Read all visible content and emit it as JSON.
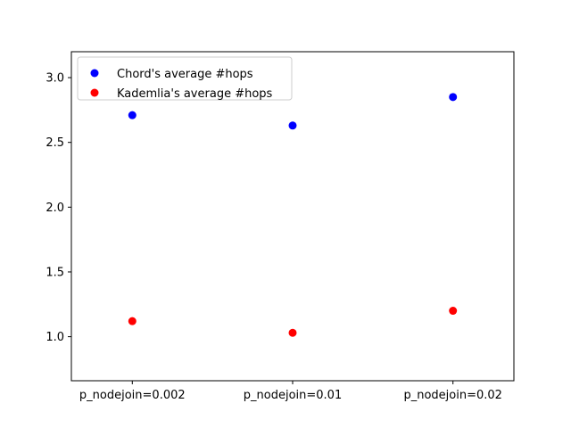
{
  "chart_data": {
    "type": "scatter",
    "categories": [
      "p_nodejoin=0.002",
      "p_nodejoin=0.01",
      "p_nodejoin=0.02"
    ],
    "series": [
      {
        "name": "Chord's average #hops",
        "color": "#0000ff",
        "values": [
          2.71,
          2.63,
          2.85
        ]
      },
      {
        "name": "Kademlia's average #hops",
        "color": "#ff0000",
        "values": [
          1.12,
          1.03,
          1.2
        ]
      }
    ],
    "ylim": [
      0.66,
      3.2
    ],
    "yticks": [
      1.0,
      1.5,
      2.0,
      2.5,
      3.0
    ],
    "ytick_labels": [
      "1.0",
      "1.5",
      "2.0",
      "2.5",
      "3.0"
    ],
    "title": "",
    "xlabel": "",
    "ylabel": "",
    "grid": false,
    "legend_position": "upper-left"
  }
}
